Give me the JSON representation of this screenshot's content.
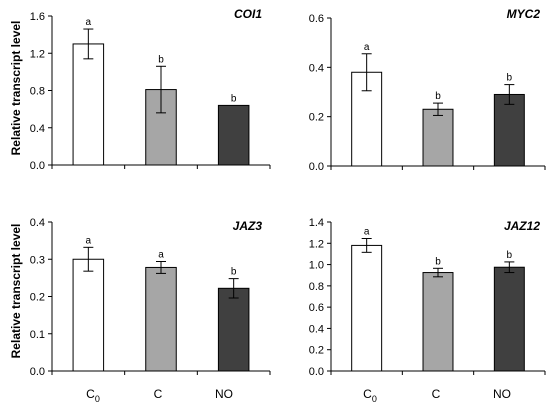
{
  "figure": {
    "ylabel": "Relative transcript level",
    "categories": [
      {
        "main": "C",
        "sub": "0"
      },
      {
        "main": "C",
        "sub": ""
      },
      {
        "main": "NO",
        "sub": ""
      }
    ]
  },
  "chart_data": [
    {
      "type": "bar",
      "title": "COI1",
      "categories": [
        "C0",
        "C",
        "NO"
      ],
      "values": [
        1.3,
        0.81,
        0.64
      ],
      "errors": [
        0.16,
        0.25,
        0.0
      ],
      "letters": [
        "a",
        "b",
        "b"
      ],
      "ylim": [
        0,
        1.6
      ],
      "yticks": [
        "0.0",
        "0.4",
        "0.8",
        "1.2",
        "1.6"
      ],
      "ylabel": "Relative transcript level",
      "colors": [
        "#ffffff",
        "#a6a6a6",
        "#404040"
      ]
    },
    {
      "type": "bar",
      "title": "MYC2",
      "categories": [
        "C0",
        "C",
        "NO"
      ],
      "values": [
        0.38,
        0.23,
        0.29
      ],
      "errors": [
        0.075,
        0.025,
        0.04
      ],
      "letters": [
        "a",
        "b",
        "b"
      ],
      "ylim": [
        0,
        0.6
      ],
      "yticks": [
        "0.0",
        "0.2",
        "0.4",
        "0.6"
      ],
      "ylabel": "",
      "colors": [
        "#ffffff",
        "#a6a6a6",
        "#404040"
      ]
    },
    {
      "type": "bar",
      "title": "JAZ3",
      "categories": [
        "C0",
        "C",
        "NO"
      ],
      "values": [
        0.3,
        0.278,
        0.222
      ],
      "errors": [
        0.032,
        0.016,
        0.026
      ],
      "letters": [
        "a",
        "a",
        "b"
      ],
      "ylim": [
        0,
        0.4
      ],
      "yticks": [
        "0.0",
        "0.1",
        "0.2",
        "0.3",
        "0.4"
      ],
      "ylabel": "Relative transcript level",
      "colors": [
        "#ffffff",
        "#a6a6a6",
        "#404040"
      ]
    },
    {
      "type": "bar",
      "title": "JAZ12",
      "categories": [
        "C0",
        "C",
        "NO"
      ],
      "values": [
        1.18,
        0.925,
        0.975
      ],
      "errors": [
        0.065,
        0.04,
        0.05
      ],
      "letters": [
        "a",
        "b",
        "b"
      ],
      "ylim": [
        0,
        1.4
      ],
      "yticks": [
        "0.0",
        "0.2",
        "0.4",
        "0.6",
        "0.8",
        "1.0",
        "1.2",
        "1.4"
      ],
      "ylabel": "",
      "colors": [
        "#ffffff",
        "#a6a6a6",
        "#404040"
      ]
    }
  ]
}
